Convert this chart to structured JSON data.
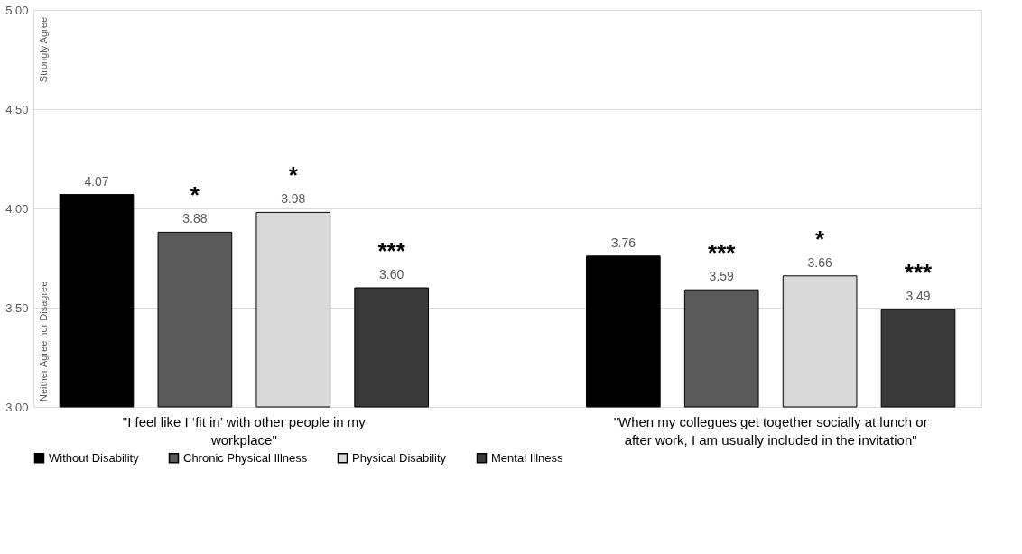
{
  "chart_data": {
    "type": "bar",
    "categories": [
      "\"I feel like I ‘fit in’ with other people in my workplace\"",
      "\"When my collegues get together socially at lunch or after work, I am usually included in the invitation\""
    ],
    "series": [
      {
        "name": "Without Disability",
        "color": "#000000",
        "values": [
          4.07,
          3.76
        ],
        "value_labels": [
          "4.07",
          "3.76"
        ]
      },
      {
        "name": "Chronic Physical Illness",
        "color": "#5a5a5a",
        "values": [
          3.88,
          3.59
        ],
        "value_labels": [
          "3.88",
          "3.59"
        ]
      },
      {
        "name": "Physical Disability",
        "color": "#d9d9d9",
        "values": [
          3.98,
          3.66
        ],
        "value_labels": [
          "3.98",
          "3.66"
        ]
      },
      {
        "name": "Mental Illness",
        "color": "#3a3a3a",
        "values": [
          3.6,
          3.49
        ],
        "value_labels": [
          "3.60",
          "3.49"
        ]
      }
    ],
    "ylim": [
      3,
      5
    ],
    "yticks": [
      {
        "value": 3,
        "label": "3.00"
      },
      {
        "value": 3.5,
        "label": "3.50"
      },
      {
        "value": 4,
        "label": "4.00"
      },
      {
        "value": 4.5,
        "label": "4.50"
      },
      {
        "value": 5,
        "label": "5.00"
      }
    ],
    "grid": "y",
    "legend": "bottom",
    "annotations": [
      "Strongly Agree",
      "Neither Agree nor Disagree",
      "*",
      "*",
      "***",
      "***",
      "*",
      "***"
    ]
  }
}
